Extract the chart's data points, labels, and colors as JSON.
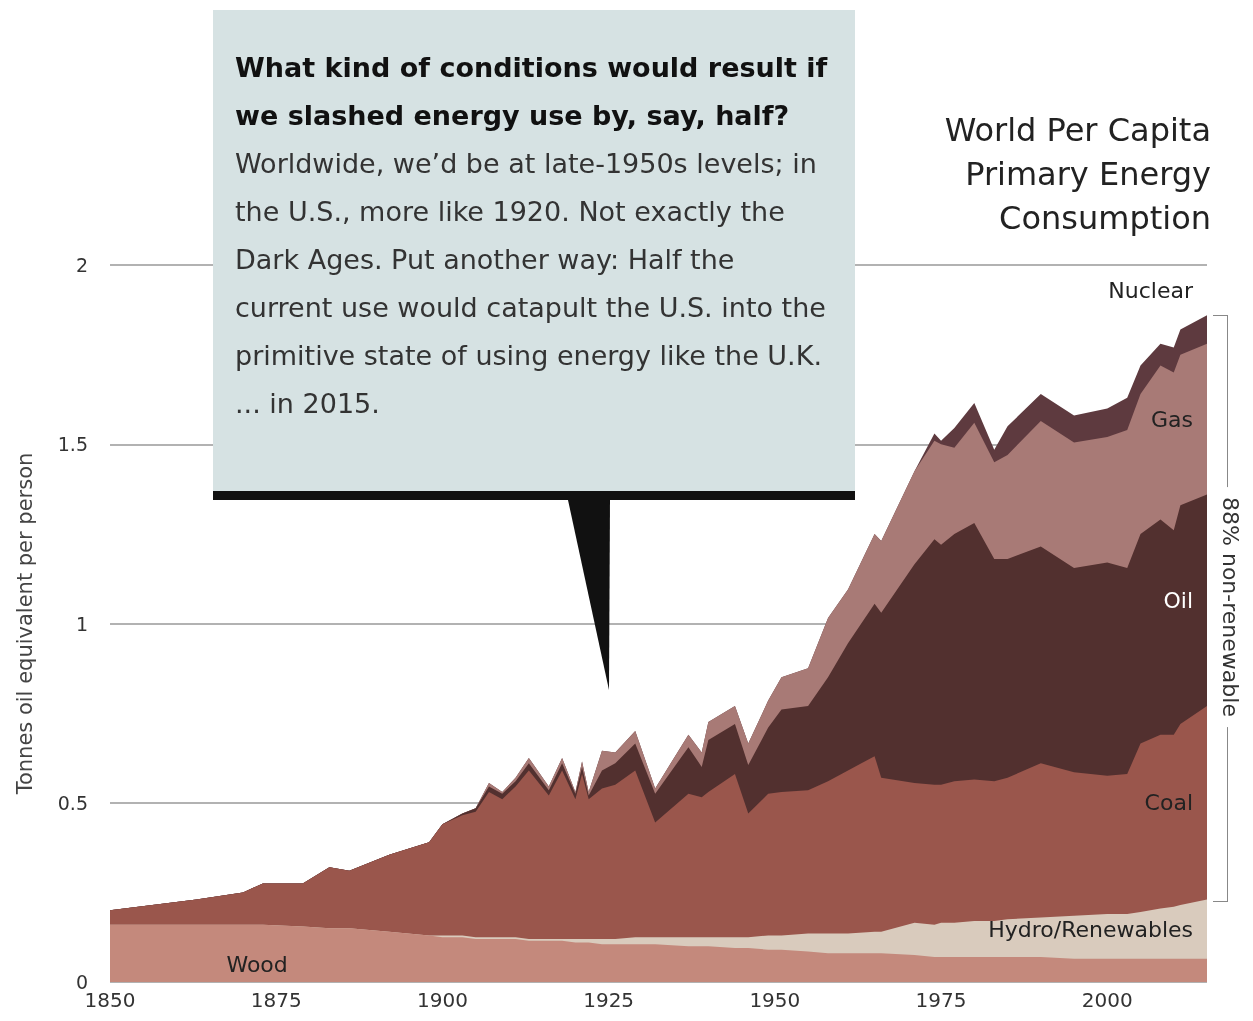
{
  "chart_data": {
    "type": "area",
    "stacked": true,
    "title": "World Per Capita Primary Energy Consumption",
    "ylabel": "Tonnes oil equivalent per person",
    "annotations": [
      "What kind of conditions would result if we slashed energy use by, say, half?",
      "Worldwide, we’d be at late-1950s levels; in the U.S., more like 1920. Not exactly the Dark Ages. Put another way:  Half the current use would catapult the U.S. into the primitive state of using energy like the U.K. ... in 2015.",
      "88% non-renewable"
    ],
    "x": [
      1850,
      1863,
      1870,
      1873,
      1879,
      1883,
      1886,
      1892,
      1898,
      1900,
      1903,
      1905,
      1907,
      1909,
      1911,
      1913,
      1916,
      1918,
      1920,
      1921,
      1922,
      1924,
      1926,
      1929,
      1932,
      1937,
      1939,
      1940,
      1944,
      1946,
      1949,
      1951,
      1955,
      1958,
      1961,
      1965,
      1966,
      1971,
      1974,
      1975,
      1977,
      1980,
      1983,
      1985,
      1990,
      1995,
      2000,
      2003,
      2005,
      2008,
      2010,
      2011,
      2015
    ],
    "series": [
      {
        "name": "Wood",
        "color": "#c4897c",
        "values": [
          0.16,
          0.16,
          0.16,
          0.16,
          0.155,
          0.15,
          0.15,
          0.14,
          0.13,
          0.125,
          0.125,
          0.12,
          0.12,
          0.12,
          0.12,
          0.115,
          0.115,
          0.115,
          0.11,
          0.11,
          0.11,
          0.105,
          0.105,
          0.105,
          0.105,
          0.1,
          0.1,
          0.1,
          0.095,
          0.095,
          0.09,
          0.09,
          0.085,
          0.08,
          0.08,
          0.08,
          0.08,
          0.075,
          0.07,
          0.07,
          0.07,
          0.07,
          0.07,
          0.07,
          0.07,
          0.065,
          0.065,
          0.065,
          0.065,
          0.065,
          0.065,
          0.065,
          0.065
        ]
      },
      {
        "name": "Hydro/Renewables",
        "color": "#d9cbbd",
        "values": [
          0,
          0,
          0,
          0,
          0,
          0,
          0,
          0,
          0,
          0.005,
          0.005,
          0.005,
          0.005,
          0.005,
          0.005,
          0.005,
          0.005,
          0.005,
          0.01,
          0.01,
          0.01,
          0.015,
          0.015,
          0.02,
          0.02,
          0.025,
          0.025,
          0.025,
          0.03,
          0.03,
          0.04,
          0.04,
          0.05,
          0.055,
          0.055,
          0.06,
          0.06,
          0.09,
          0.09,
          0.095,
          0.095,
          0.1,
          0.1,
          0.105,
          0.11,
          0.12,
          0.125,
          0.125,
          0.13,
          0.14,
          0.145,
          0.15,
          0.165
        ]
      },
      {
        "name": "Coal",
        "color": "#9a564c",
        "values": [
          0.04,
          0.07,
          0.09,
          0.115,
          0.12,
          0.17,
          0.16,
          0.215,
          0.26,
          0.31,
          0.335,
          0.35,
          0.405,
          0.385,
          0.42,
          0.47,
          0.4,
          0.47,
          0.39,
          0.46,
          0.39,
          0.42,
          0.43,
          0.465,
          0.32,
          0.4,
          0.39,
          0.405,
          0.455,
          0.345,
          0.395,
          0.4,
          0.4,
          0.425,
          0.455,
          0.49,
          0.43,
          0.39,
          0.39,
          0.385,
          0.395,
          0.395,
          0.39,
          0.395,
          0.43,
          0.4,
          0.385,
          0.39,
          0.47,
          0.485,
          0.48,
          0.505,
          0.54
        ]
      },
      {
        "name": "Oil",
        "color": "#52302f",
        "values": [
          0,
          0,
          0,
          0,
          0,
          0,
          0,
          0,
          0,
          0,
          0.005,
          0.01,
          0.015,
          0.015,
          0.015,
          0.02,
          0.015,
          0.02,
          0.015,
          0.02,
          0.01,
          0.05,
          0.06,
          0.075,
          0.08,
          0.13,
          0.085,
          0.145,
          0.14,
          0.135,
          0.185,
          0.23,
          0.235,
          0.29,
          0.355,
          0.425,
          0.46,
          0.61,
          0.685,
          0.67,
          0.69,
          0.715,
          0.62,
          0.61,
          0.605,
          0.57,
          0.595,
          0.575,
          0.585,
          0.6,
          0.57,
          0.61,
          0.59
        ]
      },
      {
        "name": "Gas",
        "color": "#a87a76",
        "values": [
          0,
          0,
          0,
          0,
          0,
          0,
          0,
          0,
          0,
          0,
          0,
          0,
          0.01,
          0.005,
          0.01,
          0.015,
          0.01,
          0.015,
          0.005,
          0.015,
          0.01,
          0.055,
          0.03,
          0.035,
          0.015,
          0.035,
          0.04,
          0.05,
          0.05,
          0.06,
          0.075,
          0.09,
          0.105,
          0.165,
          0.15,
          0.195,
          0.2,
          0.26,
          0.275,
          0.28,
          0.24,
          0.28,
          0.27,
          0.29,
          0.35,
          0.35,
          0.35,
          0.385,
          0.39,
          0.43,
          0.44,
          0.42,
          0.42
        ]
      },
      {
        "name": "Nuclear",
        "color": "#5e3a3f",
        "values": [
          0,
          0,
          0,
          0,
          0,
          0,
          0,
          0,
          0,
          0,
          0,
          0,
          0,
          0,
          0,
          0,
          0,
          0,
          0,
          0,
          0,
          0,
          0,
          0,
          0,
          0,
          0,
          0,
          0,
          0,
          0,
          0,
          0,
          0,
          0,
          0,
          0,
          0,
          0.02,
          0.01,
          0.055,
          0.055,
          0.035,
          0.08,
          0.075,
          0.075,
          0.08,
          0.09,
          0.08,
          0.06,
          0.07,
          0.07,
          0.08
        ]
      }
    ],
    "xlim": [
      1850,
      2015
    ],
    "xticks": [
      1850,
      1875,
      1900,
      1925,
      1950,
      1975,
      2000
    ],
    "ylim": [
      0,
      2
    ],
    "yticks": [
      0,
      0.5,
      1,
      1.5,
      2
    ],
    "grid": "y",
    "legend": false
  }
}
